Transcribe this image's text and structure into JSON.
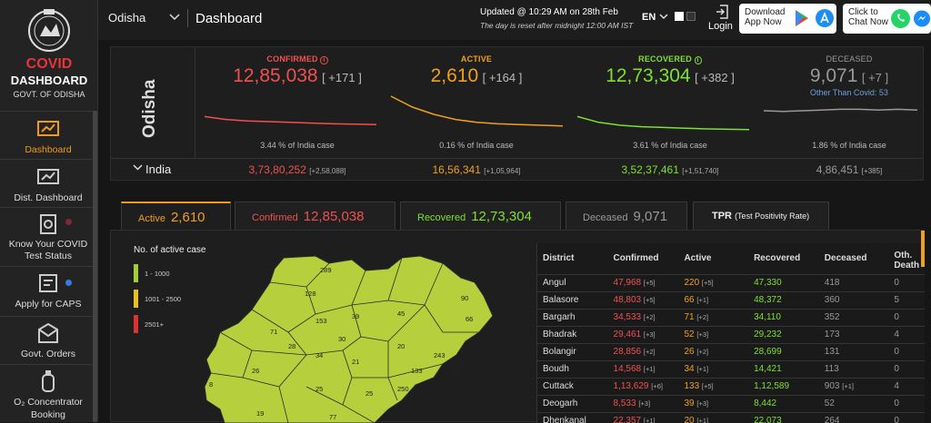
{
  "brand": {
    "line1": "COVID",
    "line2": "DASHBOARD",
    "line3": "GOVT. OF ODISHA"
  },
  "sidebar": {
    "items": [
      {
        "label": "Dashboard",
        "icon": "dashboard-icon",
        "active": true
      },
      {
        "label": "Dist. Dashboard",
        "icon": "district-dashboard-icon"
      },
      {
        "label": "Know Your COVID Test Status",
        "icon": "test-status-icon"
      },
      {
        "label": "Apply for CAPS",
        "icon": "caps-icon"
      },
      {
        "label": "Govt. Orders",
        "icon": "orders-icon"
      },
      {
        "label": "O₂ Concentrator Booking",
        "icon": "oxygen-icon"
      }
    ]
  },
  "topbar": {
    "state": "Odisha",
    "title": "Dashboard",
    "updated": "Updated @ 10:29 AM on 28th Feb",
    "reset_note": "The day is reset after midnight 12:00 AM IST",
    "lang": "EN",
    "login": "Login",
    "download_line1": "Download",
    "download_line2": "App Now",
    "chat_line1": "Click to",
    "chat_line2": "Chat Now"
  },
  "summary": {
    "region": "Odisha",
    "india_label": "India",
    "confirmed": {
      "label": "CONFIRMED",
      "value": "12,85,038",
      "delta": "[ +171 ]",
      "pct": "3.44 % of India case",
      "india": "3,73,80,252",
      "india_delta": "[+2,58,088]",
      "trend": [
        58,
        62,
        64,
        65,
        66,
        67,
        68,
        68.5,
        69
      ]
    },
    "active": {
      "label": "ACTIVE",
      "value": "2,610",
      "delta": "[ +164 ]",
      "pct": "0.16 % of India case",
      "india": "16,56,341",
      "india_delta": "[+1,05,964]",
      "trend": [
        30,
        45,
        55,
        62,
        66,
        68,
        69,
        70,
        71
      ]
    },
    "recovered": {
      "label": "RECOVERED",
      "value": "12,73,304",
      "delta": "[ +382 ]",
      "pct": "3.61 % of India case",
      "india": "3,52,37,461",
      "india_delta": "[+1,51,740]",
      "trend": [
        58,
        66,
        70,
        72,
        73,
        74,
        75,
        75.5,
        76
      ]
    },
    "deceased": {
      "label": "DECEASED",
      "value": "9,071",
      "delta": "[ +7 ]",
      "other": "Other Than Covid: 53",
      "pct": "1.86 % of India case",
      "india": "4,86,451",
      "india_delta": "[+385]",
      "trend": [
        50,
        51,
        50,
        49,
        48,
        48,
        49,
        48,
        49
      ]
    }
  },
  "colors": {
    "confirmed": "#f05050",
    "active": "#f0a020",
    "recovered": "#7ee030",
    "deceased": "#999999"
  },
  "tabs": [
    {
      "label": "Active",
      "value": "2,610"
    },
    {
      "label": "Confirmed",
      "value": "12,85,038"
    },
    {
      "label": "Recovered",
      "value": "12,73,304"
    },
    {
      "label": "Deceased",
      "value": "9,071"
    },
    {
      "label": "TPR",
      "sub": "(Test Positivity Rate)"
    }
  ],
  "map": {
    "legend_title": "No. of active case",
    "legend": [
      "1 - 1000",
      "1001 - 2500",
      "2501+"
    ],
    "labels": [
      "289",
      "128",
      "39",
      "45",
      "90",
      "66",
      "153",
      "30",
      "71",
      "28",
      "34",
      "20",
      "243",
      "26",
      "21",
      "25",
      "133",
      "52",
      "25",
      "250",
      "19",
      "77",
      "8",
      "20"
    ]
  },
  "table": {
    "headers": [
      "District",
      "Confirmed",
      "Active",
      "Recovered",
      "Deceased",
      "Oth. Death"
    ],
    "rows": [
      {
        "district": "Angul",
        "confirmed": "47,968",
        "c_d": "[+5]",
        "active": "220",
        "a_d": "[+5]",
        "recovered": "47,330",
        "deceased": "418",
        "d_d": "",
        "oth": "0"
      },
      {
        "district": "Balasore",
        "confirmed": "48,803",
        "c_d": "[+5]",
        "active": "66",
        "a_d": "[+1]",
        "recovered": "48,372",
        "deceased": "360",
        "d_d": "",
        "oth": "5"
      },
      {
        "district": "Bargarh",
        "confirmed": "34,533",
        "c_d": "[+2]",
        "active": "71",
        "a_d": "[+2]",
        "recovered": "34,110",
        "deceased": "352",
        "d_d": "",
        "oth": "0"
      },
      {
        "district": "Bhadrak",
        "confirmed": "29,461",
        "c_d": "[+3]",
        "active": "52",
        "a_d": "[+3]",
        "recovered": "29,232",
        "deceased": "173",
        "d_d": "",
        "oth": "4"
      },
      {
        "district": "Bolangir",
        "confirmed": "28,856",
        "c_d": "[+2]",
        "active": "26",
        "a_d": "[+2]",
        "recovered": "28,699",
        "deceased": "131",
        "d_d": "",
        "oth": "0"
      },
      {
        "district": "Boudh",
        "confirmed": "14,568",
        "c_d": "[+1]",
        "active": "34",
        "a_d": "[+1]",
        "recovered": "14,421",
        "deceased": "113",
        "d_d": "",
        "oth": "0"
      },
      {
        "district": "Cuttack",
        "confirmed": "1,13,629",
        "c_d": "[+6]",
        "active": "133",
        "a_d": "[+5]",
        "recovered": "1,12,589",
        "deceased": "903",
        "d_d": "[+1]",
        "oth": "4"
      },
      {
        "district": "Deogarh",
        "confirmed": "8,533",
        "c_d": "[+3]",
        "active": "39",
        "a_d": "[+3]",
        "recovered": "8,442",
        "deceased": "52",
        "d_d": "",
        "oth": "0"
      },
      {
        "district": "Dhenkanal",
        "confirmed": "22,357",
        "c_d": "[+1]",
        "active": "20",
        "a_d": "[+1]",
        "recovered": "22,073",
        "deceased": "264",
        "d_d": "",
        "oth": "0"
      }
    ]
  }
}
